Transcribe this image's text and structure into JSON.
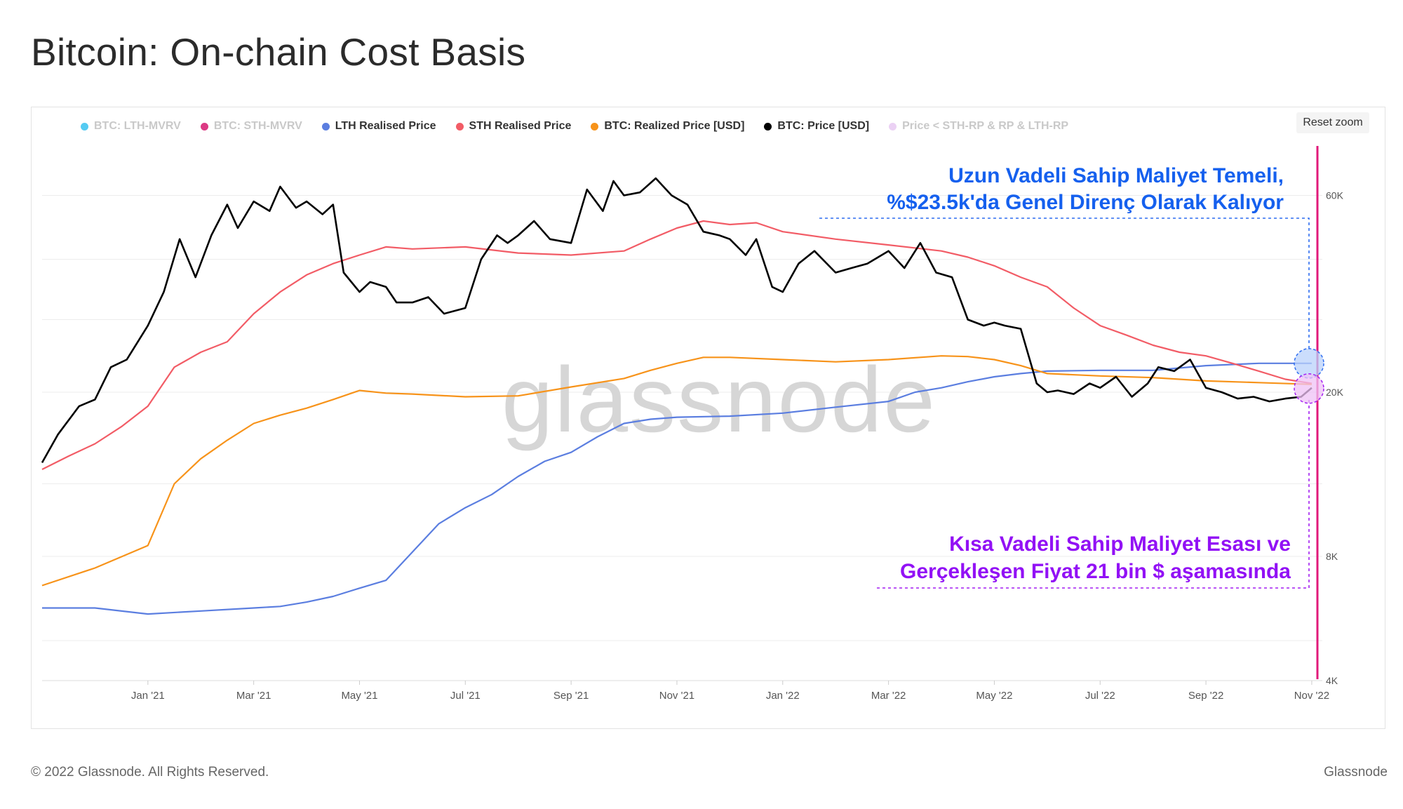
{
  "title": "Bitcoin: On-chain Cost Basis",
  "reset_zoom": "Reset zoom",
  "watermark": "glassnode",
  "footer": {
    "copyright": "© 2022 Glassnode. All Rights Reserved.",
    "brand": "Glassnode"
  },
  "annotations": {
    "lth_line1": "Uzun Vadeli Sahip Maliyet Temeli,",
    "lth_line2": "%$23.5k'da Genel Direnç Olarak Kalıyor",
    "sth_line1": "Kısa Vadeli Sahip Maliyet Esası ve",
    "sth_line2": "Gerçekleşen Fiyat 21 bin $ aşamasında"
  },
  "legend": [
    {
      "label": "BTC: LTH-MVRV",
      "color": "#37c2f0",
      "active": false
    },
    {
      "label": "BTC: STH-MVRV",
      "color": "#d6186e",
      "active": false
    },
    {
      "label": "LTH Realised Price",
      "color": "#5b7ee0",
      "active": true
    },
    {
      "label": "STH Realised Price",
      "color": "#f25c66",
      "active": true
    },
    {
      "label": "BTC: Realized Price [USD]",
      "color": "#f7931a",
      "active": true
    },
    {
      "label": "BTC: Price [USD]",
      "color": "#000000",
      "active": true
    },
    {
      "label": "Price < STH-RP & RP & LTH-RP",
      "color": "#e8c9f2",
      "active": false
    }
  ],
  "chart_data": {
    "type": "line",
    "title": "Bitcoin: On-chain Cost Basis",
    "yscale": "log",
    "ylim": [
      4000,
      80000
    ],
    "y_ticks": [
      {
        "value": 4000,
        "label": "4K"
      },
      {
        "value": 8000,
        "label": "8K"
      },
      {
        "value": 20000,
        "label": "20K"
      },
      {
        "value": 60000,
        "label": "60K"
      }
    ],
    "x_domain": [
      -1,
      23.2
    ],
    "x_ticks": [
      {
        "pos": 1,
        "label": "Jan '21"
      },
      {
        "pos": 3,
        "label": "Mar '21"
      },
      {
        "pos": 5,
        "label": "May '21"
      },
      {
        "pos": 7,
        "label": "Jul '21"
      },
      {
        "pos": 9,
        "label": "Sep '21"
      },
      {
        "pos": 11,
        "label": "Nov '21"
      },
      {
        "pos": 13,
        "label": "Jan '22"
      },
      {
        "pos": 15,
        "label": "Mar '22"
      },
      {
        "pos": 17,
        "label": "May '22"
      },
      {
        "pos": 19,
        "label": "Jul '22"
      },
      {
        "pos": 21,
        "label": "Sep '22"
      },
      {
        "pos": 23,
        "label": "Nov '22"
      }
    ],
    "series": [
      {
        "name": "LTH Realised Price",
        "color": "#5b7ee0",
        "x": [
          -1,
          0,
          1,
          2,
          3,
          3.5,
          4,
          4.5,
          5,
          5.5,
          6,
          6.5,
          7,
          7.5,
          8,
          8.5,
          9,
          9.5,
          10,
          10.5,
          11,
          12,
          13,
          14,
          15,
          15.5,
          16,
          16.5,
          17,
          17.5,
          18,
          19,
          20,
          21,
          22,
          23
        ],
        "y": [
          6000,
          6000,
          5800,
          5900,
          6000,
          6050,
          6200,
          6400,
          6700,
          7000,
          8200,
          9600,
          10500,
          11300,
          12500,
          13600,
          14300,
          15600,
          16800,
          17200,
          17400,
          17500,
          17800,
          18400,
          19000,
          20000,
          20500,
          21200,
          21800,
          22200,
          22500,
          22600,
          22600,
          23200,
          23500,
          23500
        ]
      },
      {
        "name": "STH Realised Price",
        "color": "#f25c66",
        "x": [
          -1,
          -0.5,
          0,
          0.5,
          1,
          1.5,
          2,
          2.5,
          3,
          3.5,
          4,
          4.5,
          5,
          5.5,
          6,
          7,
          8,
          9,
          10,
          10.5,
          11,
          11.5,
          12,
          12.5,
          13,
          14,
          15,
          16,
          16.5,
          17,
          17.5,
          18,
          18.5,
          19,
          19.5,
          20,
          20.5,
          21,
          21.5,
          22,
          22.5,
          23
        ],
        "y": [
          13000,
          14000,
          15000,
          16500,
          18500,
          23000,
          25000,
          26500,
          31000,
          35000,
          38500,
          41000,
          43000,
          45000,
          44500,
          45000,
          43500,
          43000,
          44000,
          47000,
          50000,
          52000,
          51000,
          51500,
          49000,
          47000,
          45500,
          44000,
          42500,
          40500,
          38000,
          36000,
          32000,
          29000,
          27500,
          26000,
          25000,
          24500,
          23500,
          22500,
          21500,
          21000
        ]
      },
      {
        "name": "BTC: Realized Price [USD]",
        "color": "#f7931a",
        "x": [
          -1,
          0,
          1,
          1.5,
          2,
          2.5,
          3,
          3.5,
          4,
          4.5,
          5,
          5.5,
          6,
          7,
          8,
          9,
          10,
          10.5,
          11,
          11.5,
          12,
          13,
          14,
          15,
          16,
          16.5,
          17,
          17.5,
          18,
          19,
          20,
          21,
          22,
          23
        ],
        "y": [
          6800,
          7500,
          8500,
          12000,
          13800,
          15300,
          16800,
          17600,
          18300,
          19200,
          20200,
          19900,
          19800,
          19500,
          19600,
          20600,
          21600,
          22600,
          23500,
          24300,
          24300,
          24000,
          23700,
          24000,
          24500,
          24400,
          24000,
          23200,
          22200,
          21900,
          21700,
          21300,
          21100,
          20900
        ]
      },
      {
        "name": "BTC: Price [USD]",
        "color": "#000000",
        "x": [
          -1,
          -0.7,
          -0.3,
          0,
          0.3,
          0.6,
          1,
          1.3,
          1.6,
          1.9,
          2.2,
          2.5,
          2.7,
          3,
          3.3,
          3.5,
          3.8,
          4,
          4.3,
          4.5,
          4.7,
          5,
          5.2,
          5.5,
          5.7,
          6,
          6.3,
          6.6,
          7,
          7.3,
          7.6,
          7.8,
          8,
          8.3,
          8.6,
          9,
          9.3,
          9.6,
          9.8,
          10,
          10.3,
          10.6,
          10.9,
          11.2,
          11.5,
          11.8,
          12,
          12.3,
          12.5,
          12.8,
          13,
          13.3,
          13.6,
          14,
          14.3,
          14.6,
          15,
          15.3,
          15.6,
          15.9,
          16.2,
          16.5,
          16.8,
          17,
          17.2,
          17.5,
          17.8,
          18,
          18.2,
          18.5,
          18.8,
          19,
          19.3,
          19.6,
          19.9,
          20.1,
          20.4,
          20.7,
          21,
          21.3,
          21.6,
          21.9,
          22.2,
          22.5,
          22.8,
          23
        ],
        "y": [
          13500,
          15800,
          18500,
          19200,
          23000,
          24000,
          29000,
          35000,
          47000,
          38000,
          48000,
          57000,
          50000,
          58000,
          55000,
          63000,
          56000,
          58000,
          54000,
          57000,
          39000,
          35000,
          37000,
          36000,
          33000,
          33000,
          34000,
          31000,
          32000,
          42000,
          48000,
          46000,
          48000,
          52000,
          47000,
          46000,
          62000,
          55000,
          65000,
          60000,
          61000,
          66000,
          60000,
          57000,
          49000,
          48000,
          47000,
          43000,
          47000,
          36000,
          35000,
          41000,
          44000,
          39000,
          40000,
          41000,
          44000,
          40000,
          46000,
          39000,
          38000,
          30000,
          29000,
          29500,
          29000,
          28500,
          21000,
          20000,
          20200,
          19800,
          21000,
          20500,
          21800,
          19500,
          21000,
          23000,
          22500,
          24000,
          20500,
          20000,
          19300,
          19500,
          19000,
          19300,
          19500,
          20500
        ]
      }
    ]
  }
}
